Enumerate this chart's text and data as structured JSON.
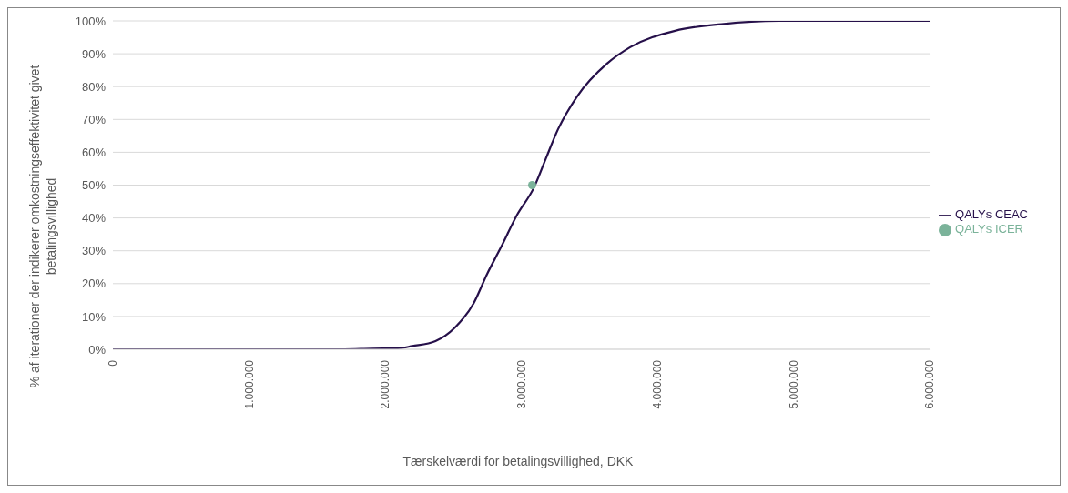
{
  "chart_data": {
    "type": "line",
    "xlabel": "Tærskelværdi for betalingsvillighed, DKK",
    "ylabel": "% af iterationer der indikerer omkostningseffektivitet givet betalingsvillighed",
    "series": [
      {
        "name": "QALYs CEAC",
        "color": "#26104a",
        "marker": "none",
        "x": [
          0,
          1700000,
          1900000,
          2090000,
          2200000,
          2370000,
          2510000,
          2650000,
          2750000,
          2850000,
          2970000,
          3090000,
          3180000,
          3270000,
          3410000,
          3630000,
          3800000,
          4130000,
          4470000,
          4890000,
          6000000
        ],
        "values": [
          0,
          0,
          0.2,
          0.3,
          1,
          2.5,
          6.5,
          14,
          23,
          31,
          41,
          49,
          58,
          67,
          77,
          87,
          92,
          97,
          99,
          100,
          100
        ]
      },
      {
        "name": "QALYs ICER",
        "type": "scatter",
        "marker": "circle",
        "color": "#7bb39a",
        "x": [
          3080000
        ],
        "values": [
          50
        ]
      }
    ],
    "xlim": [
      0,
      6000000
    ],
    "xticks": [
      0,
      {
        "value": 1000000,
        "label": "1.000.000"
      },
      {
        "value": 2000000,
        "label": "2.000.000"
      },
      {
        "value": 3000000,
        "label": "3.000.000"
      },
      {
        "value": 4000000,
        "label": "4.000.000"
      },
      {
        "value": 5000000,
        "label": "5.000.000"
      },
      {
        "value": 6000000,
        "label": "6.000.000"
      }
    ],
    "ylim": [
      0,
      100
    ],
    "yticks": [
      {
        "value": 0,
        "label": "0%"
      },
      {
        "value": 10,
        "label": "10%"
      },
      {
        "value": 20,
        "label": "20%"
      },
      {
        "value": 30,
        "label": "30%"
      },
      {
        "value": 40,
        "label": "40%"
      },
      {
        "value": 50,
        "label": "50%"
      },
      {
        "value": 60,
        "label": "60%"
      },
      {
        "value": 70,
        "label": "70%"
      },
      {
        "value": 80,
        "label": "80%"
      },
      {
        "value": 90,
        "label": "90%"
      },
      {
        "value": 100,
        "label": "100%"
      }
    ],
    "grid": "y",
    "legend": "right"
  }
}
